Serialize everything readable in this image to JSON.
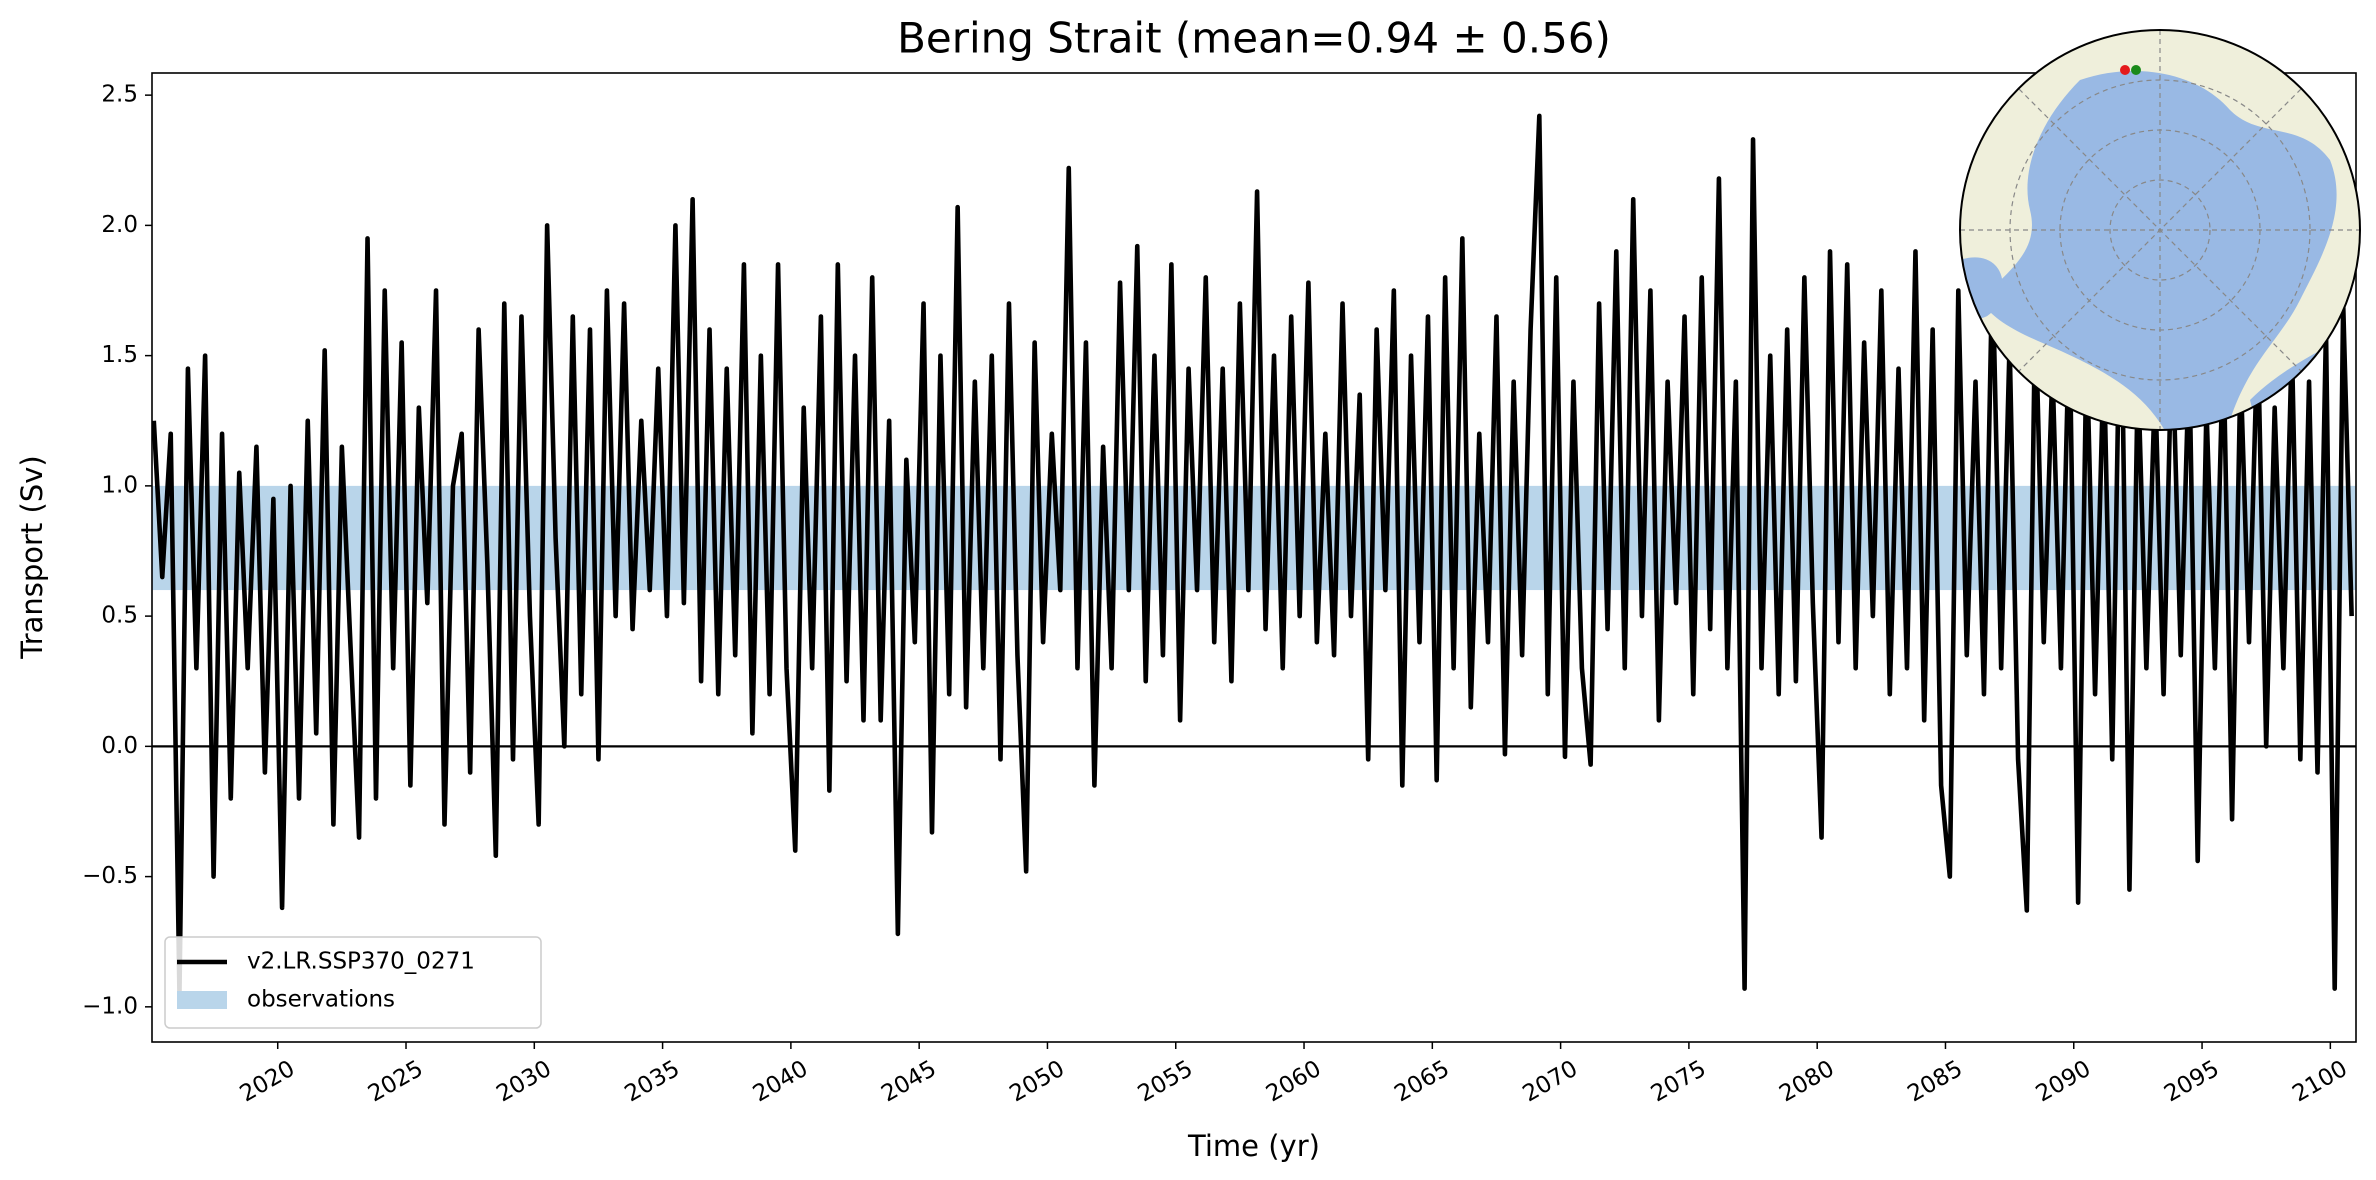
{
  "chart_data": {
    "type": "line",
    "title": "Bering Strait (mean=0.94 ± 0.56)",
    "xlabel": "Time (yr)",
    "ylabel": "Transport (Sv)",
    "xlim": [
      2015.1,
      2101
    ],
    "ylim": [
      -1.135,
      2.585
    ],
    "xticks": [
      2020,
      2025,
      2030,
      2035,
      2040,
      2045,
      2050,
      2055,
      2060,
      2065,
      2070,
      2075,
      2080,
      2085,
      2090,
      2095,
      2100
    ],
    "yticks": [
      {
        "value": -1,
        "label": "−1.0"
      },
      {
        "value": -0.5,
        "label": "−0.5"
      },
      {
        "value": 0,
        "label": "0.0"
      },
      0.5,
      {
        "value": 1,
        "label": "1.0"
      },
      1.5,
      {
        "value": 2,
        "label": "2.0"
      },
      2.5
    ],
    "hline": 0,
    "legend": "lower left",
    "observations": {
      "name": "observations",
      "range": [
        0.6,
        1.0
      ],
      "color": "#b9d5ea"
    },
    "x": [
      2015.17,
      2015.5,
      2015.83,
      2016.17,
      2016.5,
      2016.83,
      2017.17,
      2017.5,
      2017.83,
      2018.17,
      2018.5,
      2018.83,
      2019.17,
      2019.5,
      2019.83,
      2020.17,
      2020.5,
      2020.83,
      2021.17,
      2021.5,
      2021.83,
      2022.17,
      2022.5,
      2022.83,
      2023.17,
      2023.5,
      2023.83,
      2024.17,
      2024.5,
      2024.83,
      2025.17,
      2025.5,
      2025.83,
      2026.17,
      2026.5,
      2026.83,
      2027.17,
      2027.5,
      2027.83,
      2028.17,
      2028.5,
      2028.83,
      2029.17,
      2029.5,
      2029.83,
      2030.17,
      2030.5,
      2030.83,
      2031.17,
      2031.5,
      2031.83,
      2032.17,
      2032.5,
      2032.83,
      2033.17,
      2033.5,
      2033.83,
      2034.17,
      2034.5,
      2034.83,
      2035.17,
      2035.5,
      2035.83,
      2036.17,
      2036.5,
      2036.83,
      2037.17,
      2037.5,
      2037.83,
      2038.17,
      2038.5,
      2038.83,
      2039.17,
      2039.5,
      2039.83,
      2040.17,
      2040.5,
      2040.83,
      2041.17,
      2041.5,
      2041.83,
      2042.17,
      2042.5,
      2042.83,
      2043.17,
      2043.5,
      2043.83,
      2044.17,
      2044.5,
      2044.83,
      2045.17,
      2045.5,
      2045.83,
      2046.17,
      2046.5,
      2046.83,
      2047.17,
      2047.5,
      2047.83,
      2048.17,
      2048.5,
      2048.83,
      2049.17,
      2049.5,
      2049.83,
      2050.17,
      2050.5,
      2050.83,
      2051.17,
      2051.5,
      2051.83,
      2052.17,
      2052.5,
      2052.83,
      2053.17,
      2053.5,
      2053.83,
      2054.17,
      2054.5,
      2054.83,
      2055.17,
      2055.5,
      2055.83,
      2056.17,
      2056.5,
      2056.83,
      2057.17,
      2057.5,
      2057.83,
      2058.17,
      2058.5,
      2058.83,
      2059.17,
      2059.5,
      2059.83,
      2060.17,
      2060.5,
      2060.83,
      2061.17,
      2061.5,
      2061.83,
      2062.17,
      2062.5,
      2062.83,
      2063.17,
      2063.5,
      2063.83,
      2064.17,
      2064.5,
      2064.83,
      2065.17,
      2065.5,
      2065.83,
      2066.17,
      2066.5,
      2066.83,
      2067.17,
      2067.5,
      2067.83,
      2068.17,
      2068.5,
      2068.83,
      2069.17,
      2069.5,
      2069.83,
      2070.17,
      2070.5,
      2070.83,
      2071.17,
      2071.5,
      2071.83,
      2072.17,
      2072.5,
      2072.83,
      2073.17,
      2073.5,
      2073.83,
      2074.17,
      2074.5,
      2074.83,
      2075.17,
      2075.5,
      2075.83,
      2076.17,
      2076.5,
      2076.83,
      2077.17,
      2077.5,
      2077.83,
      2078.17,
      2078.5,
      2078.83,
      2079.17,
      2079.5,
      2079.83,
      2080.17,
      2080.5,
      2080.83,
      2081.17,
      2081.5,
      2081.83,
      2082.17,
      2082.5,
      2082.83,
      2083.17,
      2083.5,
      2083.83,
      2084.17,
      2084.5,
      2084.83,
      2085.17,
      2085.5,
      2085.83,
      2086.17,
      2086.5,
      2086.83,
      2087.17,
      2087.5,
      2087.83,
      2088.17,
      2088.5,
      2088.83,
      2089.17,
      2089.5,
      2089.83,
      2090.17,
      2090.5,
      2090.83,
      2091.17,
      2091.5,
      2091.83,
      2092.17,
      2092.5,
      2092.83,
      2093.17,
      2093.5,
      2093.83,
      2094.17,
      2094.5,
      2094.83,
      2095.17,
      2095.5,
      2095.83,
      2096.17,
      2096.5,
      2096.83,
      2097.17,
      2097.5,
      2097.83,
      2098.17,
      2098.5,
      2098.83,
      2099.17,
      2099.5,
      2099.83,
      2100.17,
      2100.5,
      2100.83
    ],
    "series": [
      {
        "name": "v2.LR.SSP370_0271",
        "color": "#000000",
        "values": [
          1.25,
          0.65,
          1.2,
          -0.95,
          1.45,
          0.3,
          1.5,
          -0.5,
          1.2,
          -0.2,
          1.05,
          0.3,
          1.15,
          -0.1,
          0.95,
          -0.62,
          1.0,
          -0.2,
          1.25,
          0.05,
          1.52,
          -0.3,
          1.15,
          0.4,
          -0.35,
          1.95,
          -0.2,
          1.75,
          0.3,
          1.55,
          -0.15,
          1.3,
          0.55,
          1.75,
          -0.3,
          1.0,
          1.2,
          -0.1,
          1.6,
          0.7,
          -0.42,
          1.7,
          -0.05,
          1.65,
          0.5,
          -0.3,
          2.0,
          0.8,
          0.0,
          1.65,
          0.2,
          1.6,
          -0.05,
          1.75,
          0.5,
          1.7,
          0.45,
          1.25,
          0.6,
          1.45,
          0.5,
          2.0,
          0.55,
          2.1,
          0.25,
          1.6,
          0.2,
          1.45,
          0.35,
          1.85,
          0.05,
          1.5,
          0.2,
          1.85,
          0.3,
          -0.4,
          1.3,
          0.3,
          1.65,
          -0.17,
          1.85,
          0.25,
          1.5,
          0.1,
          1.8,
          0.1,
          1.25,
          -0.72,
          1.1,
          0.4,
          1.7,
          -0.33,
          1.5,
          0.2,
          2.07,
          0.15,
          1.4,
          0.3,
          1.5,
          -0.05,
          1.7,
          0.35,
          -0.48,
          1.55,
          0.4,
          1.2,
          0.6,
          2.22,
          0.3,
          1.55,
          -0.15,
          1.15,
          0.3,
          1.78,
          0.6,
          1.92,
          0.25,
          1.5,
          0.35,
          1.85,
          0.1,
          1.45,
          0.6,
          1.8,
          0.4,
          1.45,
          0.25,
          1.7,
          0.6,
          2.13,
          0.45,
          1.5,
          0.3,
          1.65,
          0.5,
          1.78,
          0.4,
          1.2,
          0.35,
          1.7,
          0.5,
          1.35,
          -0.05,
          1.6,
          0.6,
          1.75,
          -0.15,
          1.5,
          0.4,
          1.65,
          -0.13,
          1.8,
          0.3,
          1.95,
          0.15,
          1.2,
          0.4,
          1.65,
          -0.03,
          1.4,
          0.35,
          1.6,
          2.42,
          0.2,
          1.8,
          -0.04,
          1.4,
          0.3,
          -0.07,
          1.7,
          0.45,
          1.9,
          0.3,
          2.1,
          0.5,
          1.75,
          0.1,
          1.4,
          0.55,
          1.65,
          0.2,
          1.8,
          0.45,
          2.18,
          0.3,
          1.4,
          -0.93,
          2.33,
          0.3,
          1.5,
          0.2,
          1.6,
          0.25,
          1.8,
          0.55,
          -0.35,
          1.9,
          0.4,
          1.85,
          0.3,
          1.55,
          0.5,
          1.75,
          0.2,
          1.45,
          0.3,
          1.9,
          0.1,
          1.6,
          -0.15,
          -0.5,
          1.75,
          0.35,
          1.4,
          0.2,
          1.85,
          0.3,
          1.55,
          -0.05,
          -0.63,
          1.7,
          0.4,
          1.45,
          0.3,
          1.65,
          -0.6,
          1.55,
          0.2,
          1.5,
          -0.05,
          1.9,
          -0.55,
          1.45,
          0.3,
          1.4,
          0.2,
          1.6,
          0.35,
          1.5,
          -0.44,
          1.3,
          0.3,
          1.55,
          -0.28,
          1.45,
          0.4,
          1.6,
          0.0,
          1.3,
          0.3,
          1.55,
          -0.05,
          1.4,
          -0.1,
          1.6,
          -0.93,
          1.7,
          0.5
        ]
      }
    ]
  }
}
